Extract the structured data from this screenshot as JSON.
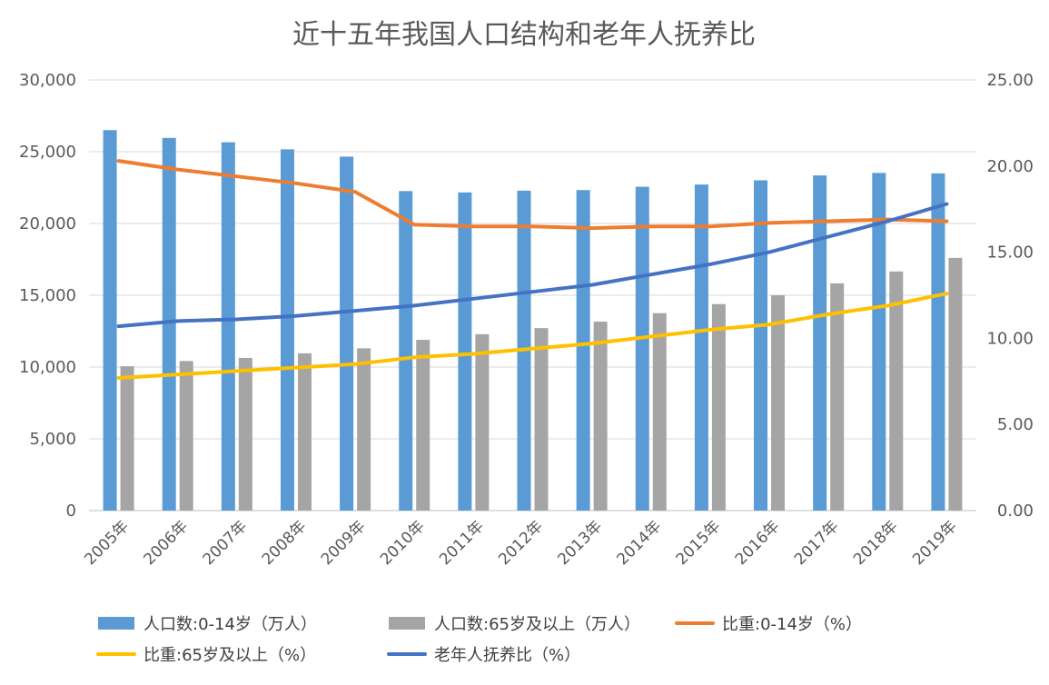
{
  "chart_data": {
    "type": "bar",
    "title": "近十五年我国人口结构和老年人抚养比",
    "categories": [
      "2005年",
      "2006年",
      "2007年",
      "2008年",
      "2009年",
      "2010年",
      "2011年",
      "2012年",
      "2013年",
      "2014年",
      "2015年",
      "2016年",
      "2017年",
      "2018年",
      "2019年"
    ],
    "y_left": {
      "min": 0,
      "max": 30000,
      "ticks": [
        "0",
        "5,000",
        "10,000",
        "15,000",
        "20,000",
        "25,000",
        "30,000"
      ]
    },
    "y_right": {
      "min": 0,
      "max": 25,
      "ticks": [
        "0.00",
        "5.00",
        "10.00",
        "15.00",
        "20.00",
        "25.00"
      ]
    },
    "grid": true,
    "legend_position": "bottom",
    "series": [
      {
        "name": "人口数:0-14岁（万人）",
        "kind": "bar",
        "axis": "left",
        "color": "#5B9BD5",
        "values": [
          26504,
          25961,
          25660,
          25166,
          24659,
          22259,
          22164,
          22287,
          22329,
          22558,
          22715,
          23008,
          23348,
          23523,
          23492
        ]
      },
      {
        "name": "人口数:65岁及以上（万人）",
        "kind": "bar",
        "axis": "left",
        "color": "#A5A5A5",
        "values": [
          10055,
          10419,
          10636,
          10956,
          11307,
          11894,
          12288,
          12714,
          13161,
          13755,
          14386,
          15003,
          15831,
          16658,
          17603
        ]
      },
      {
        "name": "比重:0-14岁（%）",
        "kind": "line",
        "axis": "right",
        "color": "#ED7D31",
        "values": [
          20.3,
          19.8,
          19.4,
          19.0,
          18.5,
          16.6,
          16.5,
          16.5,
          16.4,
          16.5,
          16.5,
          16.7,
          16.8,
          16.9,
          16.8
        ]
      },
      {
        "name": "比重:65岁及以上（%）",
        "kind": "line",
        "axis": "right",
        "color": "#FFC000",
        "values": [
          7.7,
          7.9,
          8.1,
          8.3,
          8.5,
          8.9,
          9.1,
          9.4,
          9.7,
          10.1,
          10.5,
          10.8,
          11.4,
          11.9,
          12.6
        ]
      },
      {
        "name": "老年人抚养比（%）",
        "kind": "line",
        "axis": "right",
        "color": "#4472C4",
        "values": [
          10.7,
          11.0,
          11.1,
          11.3,
          11.6,
          11.9,
          12.3,
          12.7,
          13.1,
          13.7,
          14.3,
          15.0,
          15.9,
          16.8,
          17.8
        ]
      }
    ]
  }
}
